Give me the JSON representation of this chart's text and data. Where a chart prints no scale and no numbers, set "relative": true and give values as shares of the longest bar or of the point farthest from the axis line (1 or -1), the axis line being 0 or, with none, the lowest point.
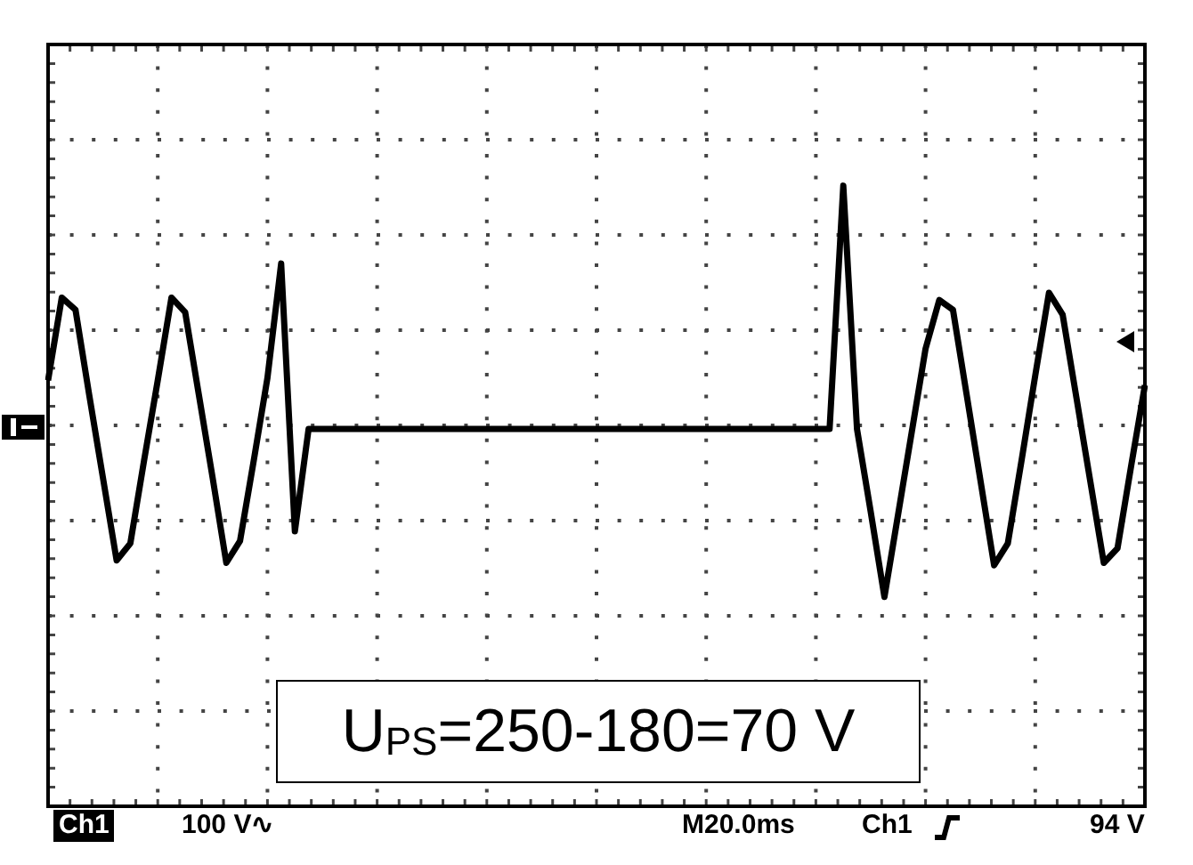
{
  "chart_data": {
    "type": "line",
    "relative": true,
    "grid": true,
    "marker": "none",
    "line_style": "solid",
    "legend": false,
    "categories": [
      null,
      null,
      null,
      null,
      null,
      null,
      null,
      null,
      null,
      null,
      null,
      null,
      null,
      null,
      null,
      null,
      null,
      null,
      null,
      null,
      null,
      null,
      null,
      null,
      null,
      null,
      null,
      null,
      null,
      null,
      null,
      null,
      null,
      null,
      null,
      null,
      null,
      null,
      null,
      null,
      null,
      null,
      null,
      null,
      null,
      null,
      null,
      null,
      null,
      null,
      null,
      null,
      null,
      null,
      null,
      null,
      null,
      null,
      null,
      null,
      null,
      null,
      null,
      null,
      null,
      null,
      null,
      null,
      null,
      null,
      null,
      null,
      null,
      null,
      null,
      null,
      null,
      null,
      null,
      null,
      null
    ],
    "series": [
      {
        "color": "#000000",
        "values": [
          0.2,
          0.54,
          0.49,
          0.14,
          -0.2,
          -0.54,
          -0.47,
          -0.13,
          0.2,
          0.54,
          0.48,
          0.14,
          -0.2,
          -0.55,
          -0.46,
          -0.13,
          0.21,
          0.68,
          -0.42,
          0,
          0,
          0,
          0,
          0,
          0,
          0,
          0,
          0,
          0,
          0,
          0,
          0,
          0,
          0,
          0,
          0,
          0,
          0,
          0,
          0,
          0,
          0,
          0,
          0,
          0,
          0,
          0,
          0,
          0,
          0,
          0,
          0,
          0,
          0,
          0,
          0,
          0,
          0,
          1,
          0,
          -0.34,
          -0.69,
          -0.35,
          -0.01,
          0.33,
          0.53,
          0.49,
          0.14,
          -0.21,
          -0.56,
          -0.47,
          -0.13,
          0.22,
          0.56,
          0.47,
          0.13,
          -0.21,
          -0.55,
          -0.49,
          -0.15,
          0.18
        ]
      }
    ],
    "annotations": [
      "U$_{PS}$=250-180=70 V",
      "Ch1",
      "100 V∿",
      "M20.0ms",
      "Ch1",
      "94 V"
    ]
  }
}
